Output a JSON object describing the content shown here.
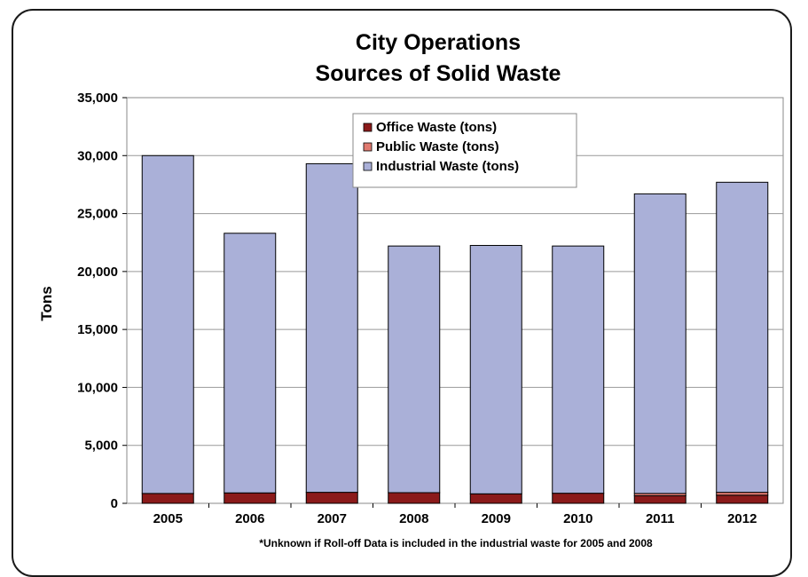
{
  "chart_data": {
    "type": "bar",
    "stacked": true,
    "title": [
      "City Operations",
      "Sources of Solid Waste"
    ],
    "xlabel": "",
    "ylabel": "Tons",
    "ylim": [
      0,
      35000
    ],
    "yticks": [
      0,
      5000,
      10000,
      15000,
      20000,
      25000,
      30000,
      35000
    ],
    "ytick_labels": [
      "0",
      "5,000",
      "10,000",
      "15,000",
      "20,000",
      "25,000",
      "30,000",
      "35,000"
    ],
    "categories": [
      "2005",
      "2006",
      "2007",
      "2008",
      "2009",
      "2010",
      "2011",
      "2012"
    ],
    "series": [
      {
        "name": "Office Waste (tons)",
        "color": "#8B1A1A",
        "values": [
          850,
          900,
          950,
          920,
          820,
          870,
          650,
          700
        ]
      },
      {
        "name": "Public Waste (tons)",
        "color": "#E07A70",
        "values": [
          0,
          0,
          0,
          0,
          0,
          0,
          200,
          250
        ]
      },
      {
        "name": "Industrial Waste (tons)",
        "color": "#AAB0D8",
        "values": [
          29150,
          22400,
          28350,
          21280,
          21430,
          21330,
          25850,
          26750
        ]
      }
    ],
    "grid": true,
    "legend_position": "top-center",
    "note": "*Unknown if Roll-off Data is included in the industrial waste for 2005 and 2008"
  }
}
